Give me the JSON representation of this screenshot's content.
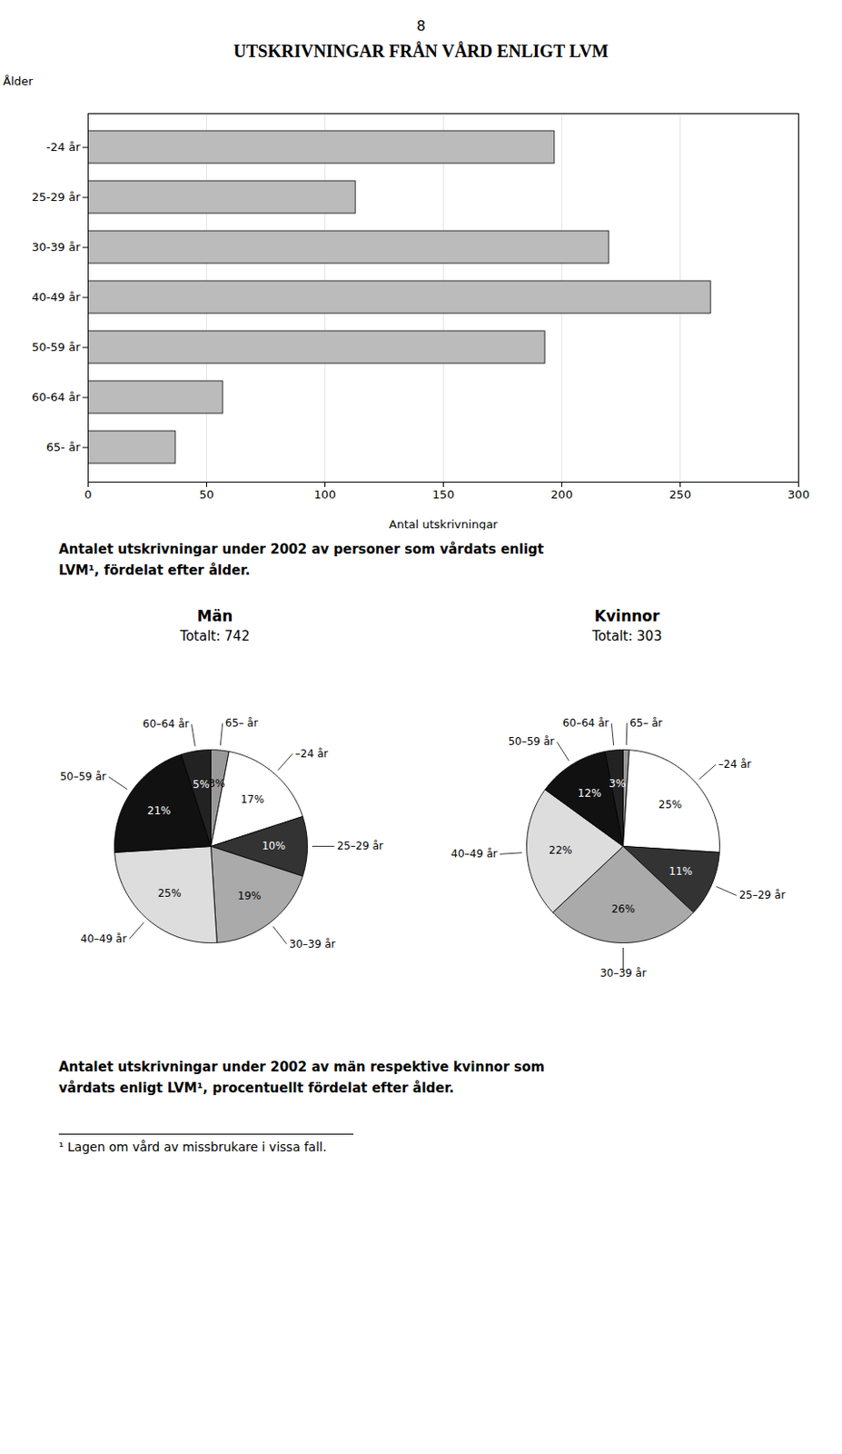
{
  "chart_data": [
    {
      "type": "bar",
      "orientation": "horizontal",
      "title": "UTSKRIVNINGAR FRÅN VÅRD ENLIGT LVM",
      "annotations": [
        "8"
      ],
      "categories": [
        "65- år",
        "60-64 år",
        "50-59 år",
        "40-49 år",
        "30-39 år",
        "25-29 år",
        "-24 år"
      ],
      "values": [
        37,
        57,
        193,
        263,
        220,
        113,
        197
      ],
      "color": "#bbbbbb",
      "x_label": "Antal utskrivningar",
      "y_label": "Ålder",
      "xlim": [
        0,
        300
      ],
      "xticks": [
        0,
        50,
        100,
        150,
        200,
        250,
        300
      ],
      "grid": true,
      "caption": "Antalet utskrivningar under 2002 av personer som vårdats enligt\nLVM¹, fördelat efter ålder."
    },
    {
      "type": "pie",
      "title": "Män",
      "subtitle": "Totalt: 742",
      "categories": [
        "65– år",
        "–24 år",
        "25–29 år",
        "30–39 år",
        "40–49 år",
        "50–59 år",
        "60–64 år"
      ],
      "values": [
        3,
        17,
        10,
        19,
        25,
        21,
        5
      ],
      "value_labels": [
        "3%",
        "17%",
        "10%",
        "19%",
        "25%",
        "21%",
        "5%"
      ],
      "colors": [
        "#999999",
        "#ffffff",
        "#333333",
        "#aaaaaa",
        "#dddddd",
        "#111111",
        "#222222"
      ],
      "data_labels": true
    },
    {
      "type": "pie",
      "title": "Kvinnor",
      "subtitle": "Totalt: 303",
      "categories": [
        "65– år",
        "–24 år",
        "25–29 år",
        "30–39 år",
        "40–49 år",
        "50–59 år",
        "60–64 år"
      ],
      "values": [
        1,
        25,
        11,
        26,
        22,
        12,
        3
      ],
      "value_labels": [
        null,
        "25%",
        "11%",
        "26%",
        "22%",
        "12%",
        "3%"
      ],
      "colors": [
        "#999999",
        "#ffffff",
        "#333333",
        "#aaaaaa",
        "#dddddd",
        "#111111",
        "#222222"
      ],
      "data_labels": true,
      "caption": "Antalet utskrivningar under 2002 av män respektive kvinnor som\nvårdats enligt LVM¹, procentuellt fördelat efter ålder.",
      "annotations": [
        "¹ Lagen om vård av missbrukare i vissa fall."
      ]
    }
  ]
}
